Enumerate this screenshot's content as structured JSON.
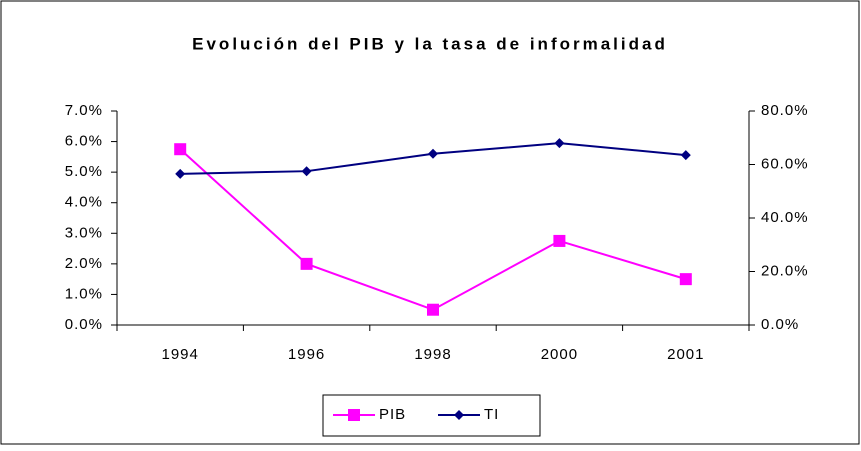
{
  "chart_data": {
    "type": "line",
    "title": "Evolución del PIB y la tasa de informalidad",
    "categories": [
      "1994",
      "1996",
      "1998",
      "2000",
      "2001"
    ],
    "series": [
      {
        "name": "PIB",
        "color": "#ff00ff",
        "marker": "square",
        "values": [
          5.75,
          2.0,
          0.5,
          2.75,
          1.5
        ]
      },
      {
        "name": "TI",
        "color": "#000080",
        "marker": "diamond",
        "axis": "y2",
        "values": [
          56.5,
          57.5,
          64,
          68,
          63.5
        ]
      }
    ],
    "ylim": [
      0,
      7
    ],
    "yticks": [
      {
        "value": 0,
        "label": "0.0%"
      },
      {
        "value": 1,
        "label": "1.0%"
      },
      {
        "value": 2,
        "label": "2.0%"
      },
      {
        "value": 3,
        "label": "3.0%"
      },
      {
        "value": 4,
        "label": "4.0%"
      },
      {
        "value": 5,
        "label": "5.0%"
      },
      {
        "value": 6,
        "label": "6.0%"
      },
      {
        "value": 7,
        "label": "7.0%"
      }
    ],
    "y2lim": [
      0,
      80
    ],
    "y2ticks": [
      {
        "value": 0,
        "label": "0.0%"
      },
      {
        "value": 20,
        "label": "20.0%"
      },
      {
        "value": 40,
        "label": "40.0%"
      },
      {
        "value": 60,
        "label": "60.0%"
      },
      {
        "value": 80,
        "label": "80.0%"
      }
    ],
    "grid": false,
    "legend": "bottom"
  }
}
